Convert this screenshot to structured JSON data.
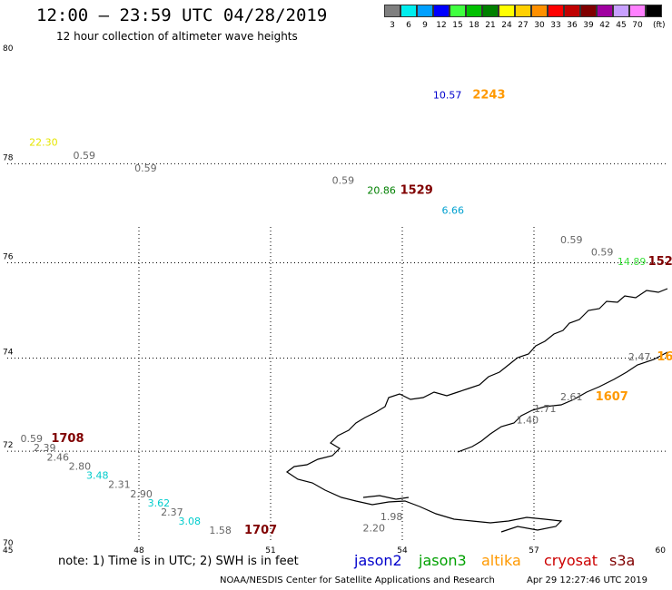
{
  "header": {
    "title": "12:00 – 23:59 UTC 04/28/2019",
    "subtitle": "12 hour collection of altimeter wave heights"
  },
  "colorbar": {
    "unit_label": "(ft)",
    "bins": [
      {
        "label": "3",
        "color": "#7f7f7f"
      },
      {
        "label": "6",
        "color": "#00eeee"
      },
      {
        "label": "9",
        "color": "#00a0ff"
      },
      {
        "label": "12",
        "color": "#0000ff"
      },
      {
        "label": "15",
        "color": "#40ff40"
      },
      {
        "label": "18",
        "color": "#00c000"
      },
      {
        "label": "21",
        "color": "#008000"
      },
      {
        "label": "24",
        "color": "#ffff00"
      },
      {
        "label": "27",
        "color": "#ffd000"
      },
      {
        "label": "30",
        "color": "#ff9000"
      },
      {
        "label": "33",
        "color": "#ff0000"
      },
      {
        "label": "36",
        "color": "#c00000"
      },
      {
        "label": "39",
        "color": "#800000"
      },
      {
        "label": "42",
        "color": "#a000a0"
      },
      {
        "label": "45",
        "color": "#c8a0ff"
      },
      {
        "label": "70",
        "color": "#ff80ff"
      },
      {
        "label": "",
        "color": "#000000"
      }
    ]
  },
  "map": {
    "lon_range": [
      45,
      60
    ],
    "lat_range": [
      70,
      80
    ],
    "lon_ticks": [
      "45",
      "48",
      "51",
      "54",
      "57",
      "60"
    ],
    "lat_ticks": [
      "80",
      "78",
      "76",
      "74",
      "72",
      "70"
    ],
    "observations": [
      {
        "text": "10.57",
        "lon": 54.7,
        "lat": 79.25,
        "color": "#0000cc"
      },
      {
        "text": "2243",
        "lon": 55.6,
        "lat": 79.25,
        "color": "#ff9900",
        "kind": "time"
      },
      {
        "text": "22.30",
        "lon": 45.5,
        "lat": 78.35,
        "color": "#e6e600"
      },
      {
        "text": "0.59",
        "lon": 46.5,
        "lat": 78.1,
        "color": "#666666"
      },
      {
        "text": "0.59",
        "lon": 47.9,
        "lat": 77.85,
        "color": "#666666"
      },
      {
        "text": "0.59",
        "lon": 52.4,
        "lat": 77.6,
        "color": "#666666"
      },
      {
        "text": "20.86",
        "lon": 53.2,
        "lat": 77.4,
        "color": "#008000"
      },
      {
        "text": "1529",
        "lon": 53.95,
        "lat": 77.4,
        "color": "#800000",
        "kind": "time"
      },
      {
        "text": "6.66",
        "lon": 54.9,
        "lat": 77.0,
        "color": "#00a0d0"
      },
      {
        "text": "0.59",
        "lon": 57.6,
        "lat": 76.4,
        "color": "#666666"
      },
      {
        "text": "0.59",
        "lon": 58.3,
        "lat": 76.15,
        "color": "#666666"
      },
      {
        "text": "14.89",
        "lon": 58.9,
        "lat": 75.95,
        "color": "#40e040"
      },
      {
        "text": "152",
        "lon": 59.6,
        "lat": 75.95,
        "color": "#800000",
        "kind": "time"
      },
      {
        "text": "2.47",
        "lon": 59.15,
        "lat": 73.95,
        "color": "#666666"
      },
      {
        "text": "16",
        "lon": 59.8,
        "lat": 73.95,
        "color": "#ff9900",
        "kind": "time"
      },
      {
        "text": "2.61",
        "lon": 57.6,
        "lat": 73.1,
        "color": "#666666"
      },
      {
        "text": "1607",
        "lon": 58.4,
        "lat": 73.1,
        "color": "#ff9900",
        "kind": "time"
      },
      {
        "text": "1.71",
        "lon": 57.0,
        "lat": 72.85,
        "color": "#666666"
      },
      {
        "text": "1.40",
        "lon": 56.6,
        "lat": 72.6,
        "color": "#666666"
      },
      {
        "text": "0.59",
        "lon": 45.3,
        "lat": 72.2,
        "color": "#666666"
      },
      {
        "text": "1708",
        "lon": 46.0,
        "lat": 72.2,
        "color": "#800000",
        "kind": "time"
      },
      {
        "text": "2.39",
        "lon": 45.6,
        "lat": 72.0,
        "color": "#666666"
      },
      {
        "text": "2.46",
        "lon": 45.9,
        "lat": 71.8,
        "color": "#666666"
      },
      {
        "text": "2.80",
        "lon": 46.4,
        "lat": 71.6,
        "color": "#666666"
      },
      {
        "text": "3.48",
        "lon": 46.8,
        "lat": 71.4,
        "color": "#00cccc"
      },
      {
        "text": "2.31",
        "lon": 47.3,
        "lat": 71.2,
        "color": "#666666"
      },
      {
        "text": "2.90",
        "lon": 47.8,
        "lat": 71.0,
        "color": "#666666"
      },
      {
        "text": "3.62",
        "lon": 48.2,
        "lat": 70.8,
        "color": "#00cccc"
      },
      {
        "text": "2.37",
        "lon": 48.5,
        "lat": 70.6,
        "color": "#666666"
      },
      {
        "text": "3.08",
        "lon": 48.9,
        "lat": 70.4,
        "color": "#00cccc"
      },
      {
        "text": "1.58",
        "lon": 49.6,
        "lat": 70.2,
        "color": "#666666"
      },
      {
        "text": "1707",
        "lon": 50.4,
        "lat": 70.2,
        "color": "#800000",
        "kind": "time"
      },
      {
        "text": "2.20",
        "lon": 53.1,
        "lat": 70.25,
        "color": "#666666"
      },
      {
        "text": "1.98",
        "lon": 53.5,
        "lat": 70.5,
        "color": "#666666"
      }
    ]
  },
  "footer": {
    "note": "note: 1) Time is in UTC; 2) SWH is in feet",
    "legend": [
      {
        "label": "jason2",
        "color": "#0000cc"
      },
      {
        "label": "jason3",
        "color": "#00a000"
      },
      {
        "label": "altika",
        "color": "#ff9900"
      },
      {
        "label": "cryosat",
        "color": "#cc0000"
      },
      {
        "label": "s3a",
        "color": "#800000"
      }
    ],
    "credit": "NOAA/NESDIS Center for Satellite Applications and Research",
    "timestamp": "Apr 29 12:27:46 UTC 2019"
  }
}
